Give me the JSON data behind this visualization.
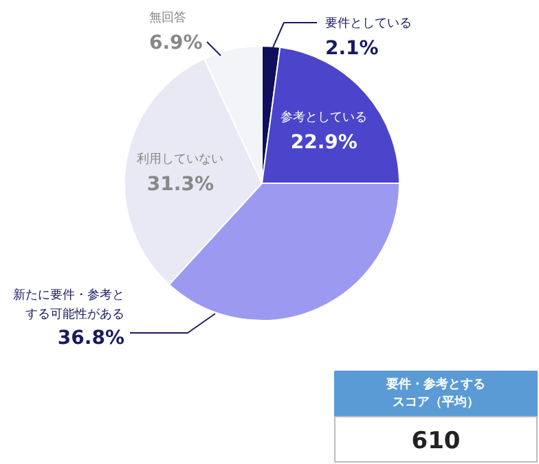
{
  "chart_data": [
    {
      "type": "pie",
      "categories": [
        "要件としている",
        "参考としている",
        "新たに要件・参考とする可能性がある",
        "利用していない",
        "無回答"
      ],
      "values": [
        2.1,
        22.9,
        36.8,
        31.3,
        6.9
      ],
      "colors": [
        "#0f0f5c",
        "#4b45cb",
        "#9b99f0",
        "#e9e9f5",
        "#f3f4f8"
      ],
      "value_labels": [
        "2.1%",
        "22.9%",
        "36.8%",
        "31.3%",
        "6.9%"
      ]
    },
    {
      "type": "other",
      "title": "要件・参考とするスコア（平均）",
      "values": [
        610
      ],
      "data_labels": true
    }
  ]
}
